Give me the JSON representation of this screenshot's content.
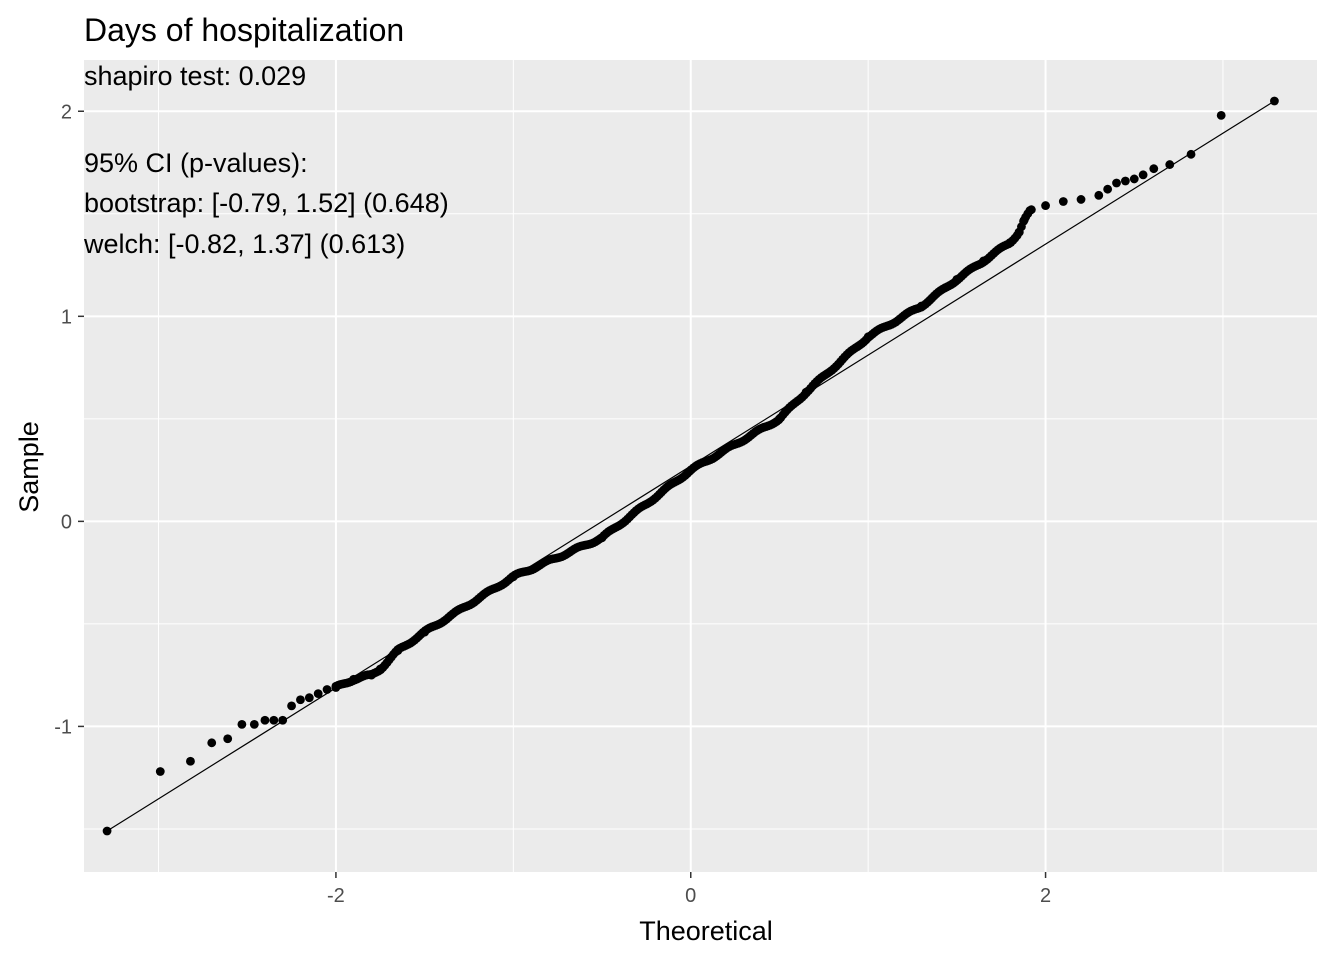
{
  "chart_data": {
    "type": "scatter",
    "title": "Days of hospitalization",
    "xlabel": "Theoretical",
    "ylabel": "Sample",
    "xlim": [
      -3.42,
      3.53
    ],
    "ylim": [
      -1.71,
      2.25
    ],
    "x_ticks": [
      -2,
      0,
      2
    ],
    "x_tick_labels": [
      "-2",
      "0",
      "2"
    ],
    "y_ticks": [
      -1,
      0,
      1,
      2
    ],
    "y_tick_labels": [
      "-1",
      "0",
      "1",
      "2"
    ],
    "grid": true,
    "annotations": [
      "shapiro test: 0.029",
      "95% CI (p-values):",
      "bootstrap: [-0.79, 1.52] (0.648)",
      "welch: [-0.82, 1.37] (0.613)"
    ],
    "reference_line": {
      "x": [
        -3.29,
        3.29
      ],
      "y": [
        -1.51,
        2.05
      ]
    },
    "theoretical_range": [
      -3.29,
      3.29
    ],
    "points": [
      [
        -3.29,
        -1.51
      ],
      [
        -2.99,
        -1.22
      ],
      [
        -2.82,
        -1.17
      ],
      [
        -2.7,
        -1.08
      ],
      [
        -2.61,
        -1.06
      ],
      [
        -2.53,
        -0.99
      ],
      [
        -2.46,
        -0.99
      ],
      [
        -2.4,
        -0.97
      ],
      [
        -2.35,
        -0.97
      ],
      [
        -2.3,
        -0.97
      ],
      [
        -2.25,
        -0.9
      ],
      [
        -2.2,
        -0.87
      ],
      [
        -2.15,
        -0.86
      ],
      [
        -2.1,
        -0.84
      ],
      [
        -2.05,
        -0.82
      ],
      [
        -2.0,
        -0.81
      ],
      [
        -1.9,
        -0.77
      ],
      [
        -1.8,
        -0.75
      ],
      [
        -1.75,
        -0.72
      ],
      [
        -1.65,
        -0.63
      ],
      [
        -1.5,
        -0.54
      ],
      [
        -1.0,
        -0.27
      ],
      [
        -0.5,
        -0.08
      ],
      [
        0.0,
        0.25
      ],
      [
        0.5,
        0.5
      ],
      [
        0.65,
        0.63
      ],
      [
        1.0,
        0.9
      ],
      [
        1.3,
        1.05
      ],
      [
        1.5,
        1.18
      ],
      [
        1.65,
        1.27
      ],
      [
        1.8,
        1.36
      ],
      [
        1.85,
        1.41
      ],
      [
        1.88,
        1.47
      ],
      [
        1.92,
        1.52
      ],
      [
        2.0,
        1.54
      ],
      [
        2.1,
        1.56
      ],
      [
        2.2,
        1.57
      ],
      [
        2.3,
        1.59
      ],
      [
        2.35,
        1.62
      ],
      [
        2.4,
        1.65
      ],
      [
        2.45,
        1.66
      ],
      [
        2.5,
        1.67
      ],
      [
        2.55,
        1.69
      ],
      [
        2.61,
        1.72
      ],
      [
        2.7,
        1.74
      ],
      [
        2.82,
        1.79
      ],
      [
        2.99,
        1.98
      ],
      [
        3.29,
        2.05
      ]
    ]
  }
}
